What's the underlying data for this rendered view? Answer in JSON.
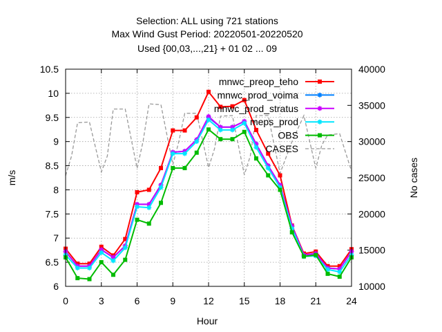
{
  "chart_data": {
    "type": "line",
    "title_lines": [
      "Selection: ALL using   721 stations",
      "Max Wind Gust   Period: 20220501-20220520",
      "Used {00,03,...,21} + 01 02 ... 09"
    ],
    "xlabel": "Hour",
    "ylabel": "m/s",
    "y2label": "No cases",
    "xlim": [
      0,
      24
    ],
    "ylim": [
      6,
      10.5
    ],
    "y2lim": [
      10000,
      40000
    ],
    "xticks": [
      0,
      3,
      6,
      9,
      12,
      15,
      18,
      21,
      24
    ],
    "yticks": [
      6,
      6.5,
      7,
      7.5,
      8,
      8.5,
      9,
      9.5,
      10,
      10.5
    ],
    "y2ticks": [
      10000,
      15000,
      20000,
      25000,
      30000,
      35000,
      40000
    ],
    "grid": true,
    "legend_position": "top-right",
    "x": [
      0,
      1,
      2,
      3,
      4,
      5,
      6,
      7,
      8,
      9,
      10,
      11,
      12,
      13,
      14,
      15,
      16,
      17,
      18,
      19,
      20,
      21,
      22,
      23,
      24
    ],
    "series": [
      {
        "name": "mnwc_preop_teho",
        "color": "#ff0000",
        "marker": "square",
        "values": [
          6.78,
          6.47,
          6.47,
          6.82,
          6.64,
          6.98,
          7.95,
          8.0,
          8.45,
          9.23,
          9.23,
          9.5,
          10.03,
          9.72,
          9.73,
          9.86,
          9.24,
          8.75,
          8.3,
          7.26,
          6.68,
          6.72,
          6.42,
          6.42,
          6.77
        ]
      },
      {
        "name": "mnwc_prod_voima",
        "color": "#0080ff",
        "marker": "star",
        "values": [
          6.72,
          6.42,
          6.42,
          6.76,
          6.6,
          6.84,
          7.7,
          7.7,
          8.1,
          8.78,
          8.8,
          9.04,
          9.5,
          9.3,
          9.3,
          9.42,
          8.95,
          8.5,
          8.1,
          7.25,
          6.65,
          6.68,
          6.38,
          6.36,
          6.72
        ]
      },
      {
        "name": "mnwc_prod_stratus",
        "color": "#cc00ff",
        "marker": "star",
        "values": [
          6.72,
          6.42,
          6.42,
          6.76,
          6.6,
          6.84,
          7.7,
          7.7,
          8.1,
          8.78,
          8.8,
          9.04,
          9.52,
          9.3,
          9.3,
          9.42,
          8.95,
          8.5,
          8.1,
          7.25,
          6.65,
          6.68,
          6.38,
          6.36,
          6.72
        ]
      },
      {
        "name": "meps_prod",
        "color": "#00e6ff",
        "marker": "star",
        "values": [
          6.65,
          6.38,
          6.38,
          6.7,
          6.53,
          6.8,
          7.65,
          7.63,
          8.05,
          8.75,
          8.75,
          9.0,
          9.45,
          9.24,
          9.24,
          9.38,
          8.88,
          8.45,
          8.05,
          7.2,
          6.62,
          6.63,
          6.35,
          6.3,
          6.65
        ]
      },
      {
        "name": "OBS",
        "color": "#00bb00",
        "marker": "square",
        "values": [
          6.6,
          6.17,
          6.15,
          6.5,
          6.24,
          6.55,
          7.38,
          7.3,
          7.73,
          8.45,
          8.45,
          8.77,
          9.25,
          9.05,
          9.05,
          9.2,
          8.65,
          8.3,
          8.0,
          7.12,
          6.62,
          6.65,
          6.26,
          6.2,
          6.6
        ]
      }
    ],
    "cases": {
      "name": "CASES",
      "color": "#999999",
      "axis": "right",
      "x": [
        0,
        0.5,
        1,
        2,
        3,
        3.5,
        4,
        5,
        6,
        6.5,
        7,
        8,
        9,
        9.5,
        10,
        11,
        12,
        12.5,
        13,
        14,
        15,
        15.5,
        16,
        17,
        18,
        19,
        20,
        21,
        21.5,
        22,
        23,
        24
      ],
      "values": [
        25300,
        28000,
        32600,
        32700,
        25800,
        28000,
        34500,
        34500,
        26300,
        30000,
        35200,
        35100,
        26800,
        30000,
        33900,
        33900,
        26400,
        29000,
        33500,
        33600,
        25400,
        28000,
        33600,
        33600,
        25600,
        30000,
        33600,
        26300,
        29500,
        30900,
        31100,
        25900
      ]
    }
  }
}
